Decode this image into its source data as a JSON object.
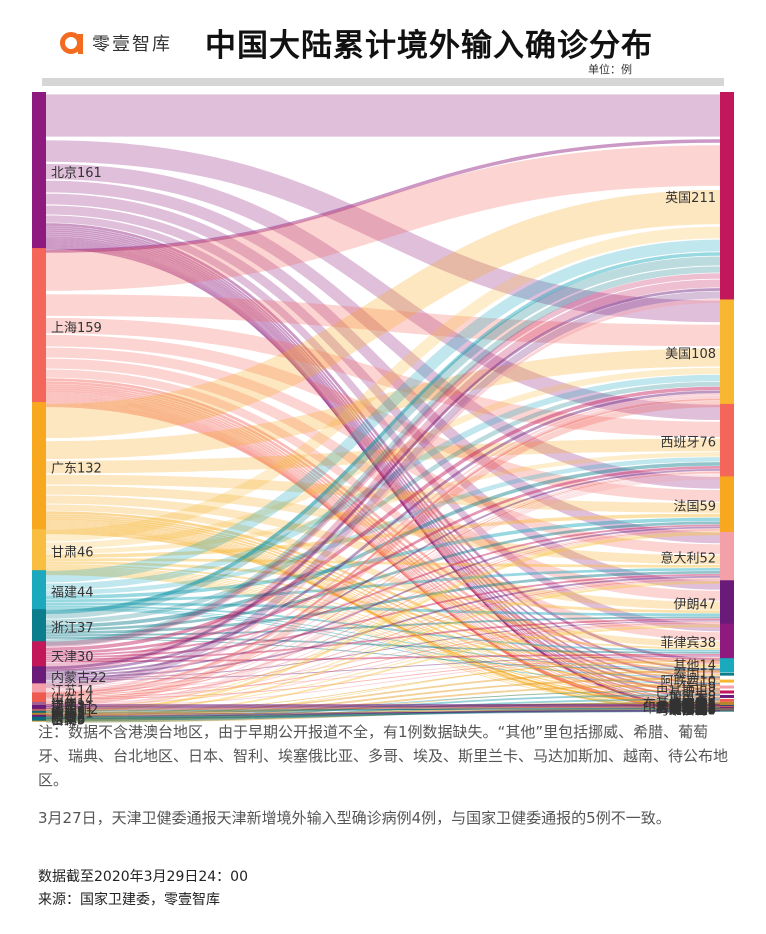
{
  "header": {
    "brand": "零壹智库",
    "title": "中国大陆累计境外输入确诊分布",
    "unit": "单位：例"
  },
  "notes": {
    "note1": "注：数据不含港澳台地区，由于早期公开报道不全，有1例数据缺失。“其他”里包括挪威、希腊、葡萄牙、瑞典、台北地区、日本、智利、埃塞俄比亚、多哥、埃及、斯里兰卡、马达加斯加、越南、待公布地区。",
    "note2": "3月27日，天津卫健委通报天津新增境外输入型确诊病例4例，与国家卫健委通报的5例不一致。",
    "date": "数据截至2020年3月29日24：00",
    "source": "来源：国家卫建委，零壹智库"
  },
  "chart_data": {
    "type": "sankey",
    "title": "中国大陆累计境外输入确诊分布",
    "unit": "例",
    "sources": [
      {
        "name": "北京",
        "value": 161,
        "color": "#8e1a7f"
      },
      {
        "name": "上海",
        "value": 159,
        "color": "#f4665a"
      },
      {
        "name": "广东",
        "value": 132,
        "color": "#f7a81e"
      },
      {
        "name": "甘肃",
        "value": 46,
        "color": "#f9bd3f"
      },
      {
        "name": "福建",
        "value": 44,
        "color": "#1aa9bd"
      },
      {
        "name": "浙江",
        "value": 37,
        "color": "#0a7e8c"
      },
      {
        "name": "天津",
        "value": 30,
        "color": "#c2185b"
      },
      {
        "name": "内蒙古",
        "value": 22,
        "color": "#6a1b7a"
      },
      {
        "name": "江苏",
        "value": 14,
        "color": "#f4a0a8"
      },
      {
        "name": "山东",
        "value": 14,
        "color": "#ef5a50"
      },
      {
        "name": "辽宁",
        "value": 11,
        "color": "#f4a0a8"
      },
      {
        "name": "四川",
        "value": 11,
        "color": "#f7c542"
      },
      {
        "name": "陕西",
        "value": 8,
        "color": "#e59a1a"
      },
      {
        "name": "云南",
        "value": 6,
        "color": "#1a9aaa"
      },
      {
        "name": "吉林",
        "value": 5,
        "color": "#c8922a"
      },
      {
        "name": "宁夏",
        "value": 3,
        "color": "#0a6c7a"
      },
      {
        "name": "山西",
        "value": 3,
        "color": "#0a6c7a"
      },
      {
        "name": "河南",
        "value": 3,
        "color": "#6a1b7a"
      },
      {
        "name": "重庆",
        "value": 3,
        "color": "#b8862a"
      },
      {
        "name": "河北",
        "value": 3,
        "color": "#0a6c7a"
      },
      {
        "name": "黑龙江",
        "value": 2,
        "color": "#c06060"
      },
      {
        "name": "广西",
        "value": 2,
        "color": "#6a1b7a"
      },
      {
        "name": "江西",
        "value": 2,
        "color": "#6a1b7a"
      },
      {
        "name": "贵州",
        "value": 1,
        "color": "#a06090"
      }
    ],
    "targets": [
      {
        "name": "英国",
        "value": 211,
        "color": "#c2185b"
      },
      {
        "name": "美国",
        "value": 108,
        "color": "#f7b731"
      },
      {
        "name": "西班牙",
        "value": 76,
        "color": "#f4665a"
      },
      {
        "name": "法国",
        "value": 59,
        "color": "#f7a81e"
      },
      {
        "name": "意大利",
        "value": 52,
        "color": "#f4a0a8"
      },
      {
        "name": "伊朗",
        "value": 47,
        "color": "#6a1b7a"
      },
      {
        "name": "菲律宾",
        "value": 38,
        "color": "#8e1a7f"
      },
      {
        "name": "其他",
        "value": 14,
        "color": "#1aa9bd"
      },
      {
        "name": "泰国",
        "value": 11,
        "color": "#0a7e8c"
      },
      {
        "name": "阿联酋",
        "value": 10,
        "color": "#f7b731"
      },
      {
        "name": "瑞士",
        "value": 9,
        "color": "#f4a0a8"
      },
      {
        "name": "巴基斯坦",
        "value": 8,
        "color": "#c2185b"
      },
      {
        "name": "加拿大",
        "value": 8,
        "color": "#6a1b7a"
      },
      {
        "name": "巴西",
        "value": 7,
        "color": "#ef5a50"
      },
      {
        "name": "布基纳法索",
        "value": 6,
        "color": "#e59a1a"
      },
      {
        "name": "德国",
        "value": 6,
        "color": "#f7c542"
      },
      {
        "name": "尼日利亚",
        "value": 5,
        "color": "#1a9aaa"
      },
      {
        "name": "奥地利",
        "value": 4,
        "color": "#0a6c7a"
      },
      {
        "name": "柬埔寨",
        "value": 4,
        "color": "#c2185b"
      },
      {
        "name": "俄罗斯",
        "value": 4,
        "color": "#f4a0a8"
      },
      {
        "name": "沙特",
        "value": 4,
        "color": "#f7a81e"
      },
      {
        "name": "马来西亚",
        "value": 3,
        "color": "#0a6c7a"
      },
      {
        "name": "匈牙利",
        "value": 3,
        "color": "#0a6c7a"
      },
      {
        "name": "爱尔兰",
        "value": 3,
        "color": "#c06060"
      },
      {
        "name": "荷兰",
        "value": 3,
        "color": "#c06060"
      },
      {
        "name": "印度尼西亚",
        "value": 2,
        "color": "#0a6c7a"
      },
      {
        "name": "科特迪瓦",
        "value": 2,
        "color": "#b8862a"
      },
      {
        "name": "刚果(金)",
        "value": 2,
        "color": "#6a1b7a"
      },
      {
        "name": "比利时",
        "value": 2,
        "color": "#6a1b7a"
      },
      {
        "name": "土耳其",
        "value": 2,
        "color": "#c06060"
      },
      {
        "name": "新加坡",
        "value": 2,
        "color": "#c06060"
      },
      {
        "name": "墨西哥",
        "value": 2,
        "color": "#6a1b7a"
      },
      {
        "name": "安哥拉",
        "value": 2,
        "color": "#0a6c7a"
      },
      {
        "name": "卢森堡",
        "value": 2,
        "color": "#b8862a"
      }
    ]
  }
}
